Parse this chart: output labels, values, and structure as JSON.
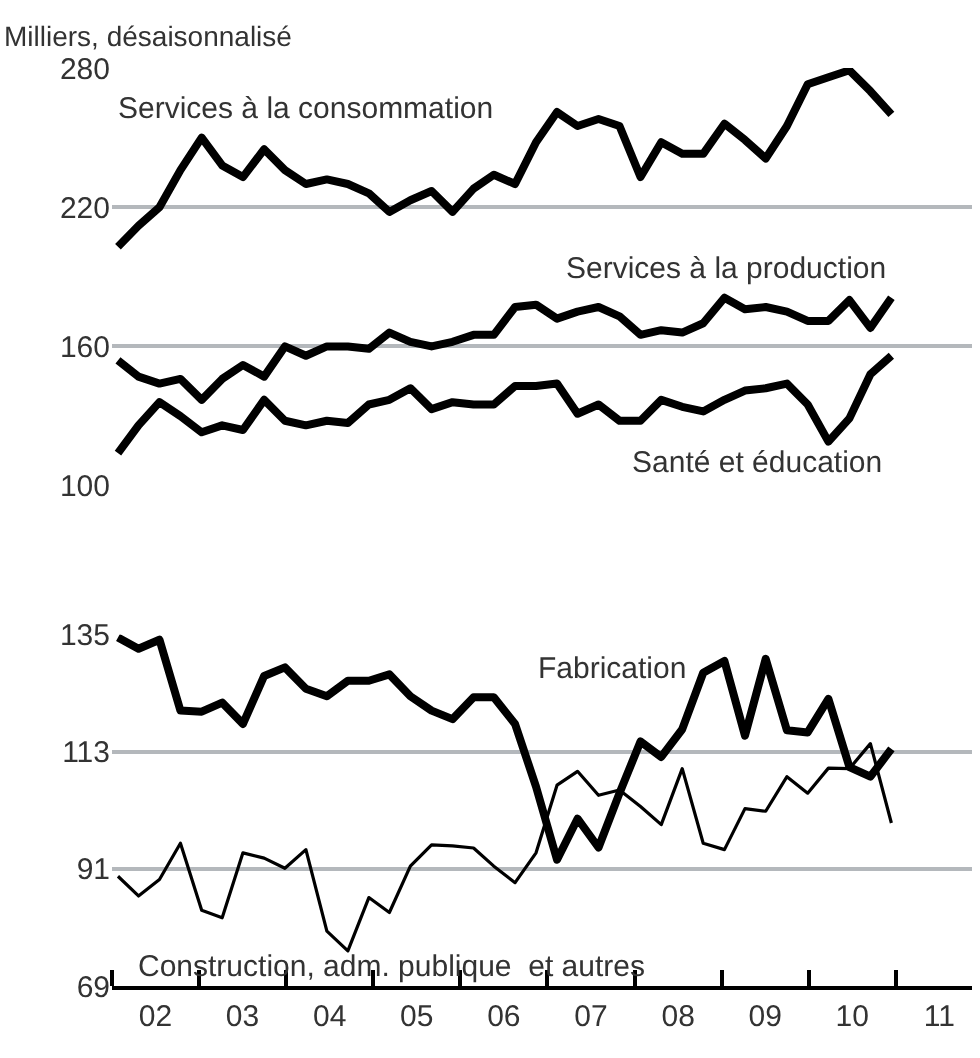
{
  "chart_data": [
    {
      "type": "line",
      "ylabel": "Milliers, désaisonnalisé",
      "tick_labels": "y",
      "grid": "y",
      "xlim": [
        "2002-01-01",
        "2011-11-16"
      ],
      "ylim": [
        100,
        280
      ],
      "yticks": [
        100,
        160,
        220,
        280
      ],
      "x": [
        "2002-01-26",
        "2002-04-22",
        "2002-07-19",
        "2002-10-15",
        "2003-01-12",
        "2003-04-08",
        "2003-07-04",
        "2003-10-01",
        "2003-12-27",
        "2004-03-24",
        "2004-06-20",
        "2004-09-16",
        "2004-12-13",
        "2005-03-09",
        "2005-06-05",
        "2005-09-02",
        "2005-11-29",
        "2006-02-25",
        "2006-05-21",
        "2006-08-18",
        "2006-11-14",
        "2007-02-10",
        "2007-05-07",
        "2007-08-03",
        "2007-10-30",
        "2008-01-26",
        "2008-04-22",
        "2008-07-19",
        "2008-10-15",
        "2009-01-12",
        "2009-04-08",
        "2009-07-04",
        "2009-10-01",
        "2009-12-27",
        "2010-03-24",
        "2010-06-20",
        "2010-09-16",
        "2010-12-13"
      ],
      "series": [
        {
          "color": "#000000",
          "values": [
            203,
            212,
            220,
            236,
            250,
            238,
            233,
            245,
            236,
            230,
            232,
            230,
            226,
            218,
            223,
            227,
            218,
            228,
            234,
            230,
            248,
            261,
            255,
            258,
            255,
            233,
            248,
            243,
            243,
            256,
            249,
            241,
            255,
            273,
            276,
            279,
            270,
            260
          ]
        },
        {
          "color": "#000000",
          "values": [
            154,
            147,
            144,
            146,
            137,
            146,
            152,
            147,
            160,
            156,
            160,
            160,
            159,
            166,
            162,
            160,
            162,
            165,
            165,
            177,
            178,
            172,
            175,
            177,
            173,
            165,
            167,
            166,
            170,
            181,
            176,
            177,
            175,
            171,
            171,
            180,
            168,
            181
          ]
        },
        {
          "color": "#000000",
          "values": [
            114,
            126,
            136,
            130,
            123,
            126,
            124,
            137,
            128,
            126,
            128,
            127,
            135,
            137,
            142,
            133,
            136,
            135,
            135,
            143,
            143,
            144,
            131,
            135,
            128,
            128,
            137,
            134,
            132,
            137,
            141,
            142,
            144,
            135,
            119,
            129,
            148,
            156
          ]
        }
      ],
      "annotations": [
        "Services à la consommation",
        "Services à la production",
        "Santé et éducation"
      ]
    },
    {
      "type": "line",
      "grid": "y",
      "xlim": [
        "2002-01-01",
        "2011-11-16"
      ],
      "ylim": [
        69,
        135
      ],
      "yticks": [
        69,
        91,
        113,
        135
      ],
      "xticks": [
        {
          "value": "2002-01-01",
          "label": null
        },
        {
          "value": "2003-01-01",
          "label": null
        },
        {
          "value": "2004-01-01",
          "label": null
        },
        {
          "value": "2005-01-01",
          "label": null
        },
        {
          "value": "2006-01-01",
          "label": null
        },
        {
          "value": "2007-01-01",
          "label": null
        },
        {
          "value": "2008-01-01",
          "label": null
        },
        {
          "value": "2009-01-01",
          "label": null
        },
        {
          "value": "2010-01-01",
          "label": null
        },
        {
          "value": "2011-01-01",
          "label": null
        },
        {
          "value": "2002-07-02",
          "label": "02"
        },
        {
          "value": "2003-07-02",
          "label": "03"
        },
        {
          "value": "2004-07-02",
          "label": "04"
        },
        {
          "value": "2005-07-02",
          "label": "05"
        },
        {
          "value": "2006-07-02",
          "label": "06"
        },
        {
          "value": "2007-07-02",
          "label": "07"
        },
        {
          "value": "2008-07-02",
          "label": "08"
        },
        {
          "value": "2009-07-02",
          "label": "09"
        },
        {
          "value": "2010-07-02",
          "label": "10"
        },
        {
          "value": "2011-07-02",
          "label": "11"
        }
      ],
      "x": [
        "2002-01-26",
        "2002-04-22",
        "2002-07-19",
        "2002-10-15",
        "2003-01-12",
        "2003-04-08",
        "2003-07-04",
        "2003-10-01",
        "2003-12-27",
        "2004-03-24",
        "2004-06-20",
        "2004-09-16",
        "2004-12-13",
        "2005-03-09",
        "2005-06-05",
        "2005-09-02",
        "2005-11-29",
        "2006-02-25",
        "2006-05-21",
        "2006-08-18",
        "2006-11-14",
        "2007-02-10",
        "2007-05-07",
        "2007-08-03",
        "2007-10-30",
        "2008-01-26",
        "2008-04-22",
        "2008-07-19",
        "2008-10-15",
        "2009-01-12",
        "2009-04-08",
        "2009-07-04",
        "2009-10-01",
        "2009-12-27",
        "2010-03-24",
        "2010-06-20",
        "2010-09-16",
        "2010-12-13"
      ],
      "series": [
        {
          "color": "#000000",
          "values": [
            134.4,
            132.3,
            134,
            120.7,
            120.5,
            122.2,
            118.2,
            127.2,
            128.8,
            124.8,
            123.4,
            126.3,
            126.3,
            127.5,
            123.4,
            120.7,
            119.1,
            123.2,
            123.2,
            118.2,
            106.4,
            92.7,
            100.4,
            95,
            105.2,
            114.9,
            112,
            117.2,
            127.8,
            130,
            116,
            130.4,
            117,
            116.6,
            122.9,
            110.1,
            108.3,
            113.5
          ]
        },
        {
          "color": "#000000",
          "values": [
            89.6,
            85.9,
            89,
            95.8,
            83.2,
            81.8,
            94,
            93,
            91.1,
            94.6,
            79.3,
            75.6,
            85.6,
            82.8,
            91.5,
            95.5,
            95.3,
            94.9,
            91.5,
            88.4,
            94,
            106.7,
            109.3,
            104.8,
            105.8,
            102.7,
            99.3,
            109.8,
            95.8,
            94.6,
            102.3,
            101.8,
            108.3,
            105.2,
            109.9,
            109.8,
            114.5,
            99.6
          ]
        }
      ],
      "annotations": [
        "Fabrication",
        "Construction, adm. publique  et autres"
      ]
    }
  ]
}
